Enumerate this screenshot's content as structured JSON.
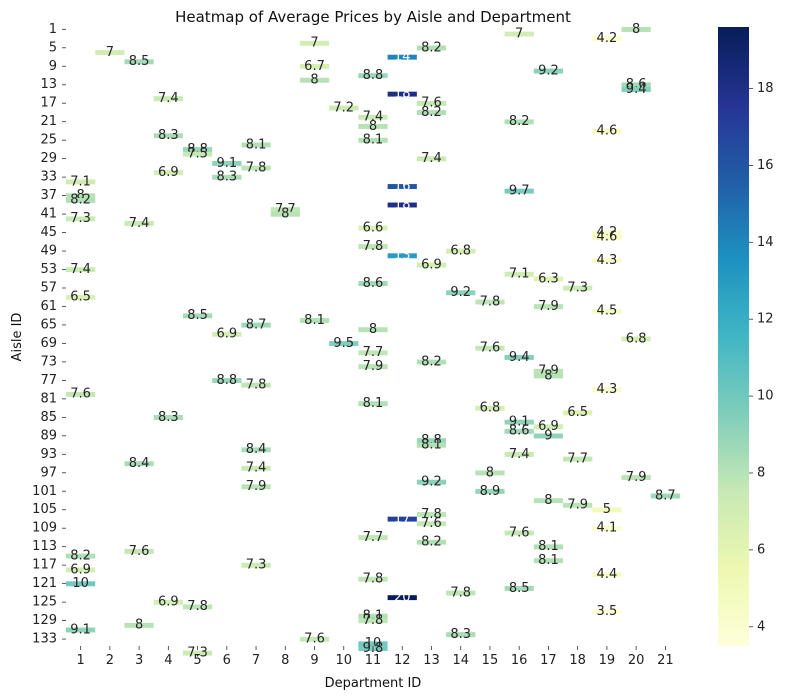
{
  "chart_data": {
    "type": "heatmap",
    "title": "Heatmap of Average Prices by Aisle and Department",
    "xlabel": "Department ID",
    "ylabel": "Aisle ID",
    "x_categories": [
      1,
      2,
      3,
      4,
      5,
      6,
      7,
      8,
      9,
      10,
      11,
      12,
      13,
      14,
      15,
      16,
      17,
      18,
      19,
      20,
      21
    ],
    "y_tick_labels": [
      1,
      5,
      9,
      13,
      17,
      21,
      25,
      29,
      33,
      37,
      41,
      45,
      49,
      53,
      57,
      61,
      65,
      69,
      73,
      77,
      81,
      85,
      89,
      93,
      97,
      101,
      105,
      109,
      113,
      117,
      121,
      125,
      129,
      133
    ],
    "y_range": [
      1,
      134
    ],
    "colorscale": "YlGnBu",
    "color_range": [
      3.5,
      19.6
    ],
    "colorbar_ticks": [
      4,
      6,
      8,
      10,
      12,
      14,
      16,
      18
    ],
    "cells": [
      {
        "aisle": 1,
        "dept": 20,
        "value": 8.0,
        "label": "8"
      },
      {
        "aisle": 2,
        "dept": 16,
        "value": 7.0,
        "label": "7"
      },
      {
        "aisle": 3,
        "dept": 19,
        "value": 4.2,
        "label": "4.2"
      },
      {
        "aisle": 4,
        "dept": 9,
        "value": 7.0,
        "label": "7"
      },
      {
        "aisle": 5,
        "dept": 13,
        "value": 8.2,
        "label": "8.2"
      },
      {
        "aisle": 6,
        "dept": 2,
        "value": 7.0,
        "label": "7"
      },
      {
        "aisle": 7,
        "dept": 12,
        "value": 14.0,
        "label": "14"
      },
      {
        "aisle": 8,
        "dept": 3,
        "value": 8.5,
        "label": "8.5"
      },
      {
        "aisle": 9,
        "dept": 9,
        "value": 6.7,
        "label": "6.7"
      },
      {
        "aisle": 10,
        "dept": 17,
        "value": 9.2,
        "label": "9.2"
      },
      {
        "aisle": 11,
        "dept": 11,
        "value": 8.8,
        "label": "8.8"
      },
      {
        "aisle": 12,
        "dept": 9,
        "value": 8.0,
        "label": "8"
      },
      {
        "aisle": 13,
        "dept": 20,
        "value": 8.6,
        "label": "8.6"
      },
      {
        "aisle": 14,
        "dept": 20,
        "value": 9.4,
        "label": "9.4"
      },
      {
        "aisle": 15,
        "dept": 12,
        "value": 18.0,
        "label": "18"
      },
      {
        "aisle": 16,
        "dept": 4,
        "value": 7.4,
        "label": "7.4"
      },
      {
        "aisle": 17,
        "dept": 13,
        "value": 7.6,
        "label": "7.6"
      },
      {
        "aisle": 18,
        "dept": 10,
        "value": 7.2,
        "label": "7.2"
      },
      {
        "aisle": 19,
        "dept": 13,
        "value": 8.2,
        "label": "8.2"
      },
      {
        "aisle": 20,
        "dept": 11,
        "value": 7.4,
        "label": "7.4"
      },
      {
        "aisle": 21,
        "dept": 16,
        "value": 8.2,
        "label": "8.2"
      },
      {
        "aisle": 22,
        "dept": 11,
        "value": 8.0,
        "label": "8"
      },
      {
        "aisle": 23,
        "dept": 19,
        "value": 4.6,
        "label": "4.6"
      },
      {
        "aisle": 24,
        "dept": 4,
        "value": 8.3,
        "label": "8.3"
      },
      {
        "aisle": 25,
        "dept": 11,
        "value": 8.1,
        "label": "8.1"
      },
      {
        "aisle": 26,
        "dept": 7,
        "value": 8.1,
        "label": "8.1"
      },
      {
        "aisle": 27,
        "dept": 5,
        "value": 8.8,
        "label": "8.8"
      },
      {
        "aisle": 28,
        "dept": 5,
        "value": 7.5,
        "label": "7.5"
      },
      {
        "aisle": 29,
        "dept": 13,
        "value": 7.4,
        "label": "7.4"
      },
      {
        "aisle": 30,
        "dept": 6,
        "value": 9.1,
        "label": "9.1"
      },
      {
        "aisle": 31,
        "dept": 7,
        "value": 7.8,
        "label": "7.8"
      },
      {
        "aisle": 32,
        "dept": 4,
        "value": 6.9,
        "label": "6.9"
      },
      {
        "aisle": 33,
        "dept": 6,
        "value": 8.3,
        "label": "8.3"
      },
      {
        "aisle": 34,
        "dept": 1,
        "value": 7.1,
        "label": "7.1"
      },
      {
        "aisle": 35,
        "dept": 12,
        "value": 16.0,
        "label": "16"
      },
      {
        "aisle": 36,
        "dept": 16,
        "value": 9.7,
        "label": "9.7"
      },
      {
        "aisle": 37,
        "dept": 1,
        "value": 8.0,
        "label": "8"
      },
      {
        "aisle": 38,
        "dept": 1,
        "value": 8.2,
        "label": "8.2"
      },
      {
        "aisle": 39,
        "dept": 12,
        "value": 18.0,
        "label": "18"
      },
      {
        "aisle": 40,
        "dept": 8,
        "value": 7.7,
        "label": "7.7"
      },
      {
        "aisle": 41,
        "dept": 8,
        "value": 8.0,
        "label": "8"
      },
      {
        "aisle": 42,
        "dept": 1,
        "value": 7.3,
        "label": "7.3"
      },
      {
        "aisle": 43,
        "dept": 3,
        "value": 7.4,
        "label": "7.4"
      },
      {
        "aisle": 44,
        "dept": 11,
        "value": 6.6,
        "label": "6.6"
      },
      {
        "aisle": 45,
        "dept": 19,
        "value": 4.2,
        "label": "4.2"
      },
      {
        "aisle": 46,
        "dept": 19,
        "value": 4.6,
        "label": "4.6"
      },
      {
        "aisle": 48,
        "dept": 11,
        "value": 7.8,
        "label": "7.8"
      },
      {
        "aisle": 49,
        "dept": 14,
        "value": 6.8,
        "label": "6.8"
      },
      {
        "aisle": 50,
        "dept": 12,
        "value": 13.0,
        "label": "13"
      },
      {
        "aisle": 51,
        "dept": 19,
        "value": 4.3,
        "label": "4.3"
      },
      {
        "aisle": 52,
        "dept": 13,
        "value": 6.9,
        "label": "6.9"
      },
      {
        "aisle": 53,
        "dept": 1,
        "value": 7.4,
        "label": "7.4"
      },
      {
        "aisle": 54,
        "dept": 16,
        "value": 7.1,
        "label": "7.1"
      },
      {
        "aisle": 55,
        "dept": 17,
        "value": 6.3,
        "label": "6.3"
      },
      {
        "aisle": 56,
        "dept": 11,
        "value": 8.6,
        "label": "8.6"
      },
      {
        "aisle": 57,
        "dept": 18,
        "value": 7.3,
        "label": "7.3"
      },
      {
        "aisle": 58,
        "dept": 14,
        "value": 9.2,
        "label": "9.2"
      },
      {
        "aisle": 59,
        "dept": 1,
        "value": 6.5,
        "label": "6.5"
      },
      {
        "aisle": 60,
        "dept": 15,
        "value": 7.8,
        "label": "7.8"
      },
      {
        "aisle": 61,
        "dept": 17,
        "value": 7.9,
        "label": "7.9"
      },
      {
        "aisle": 62,
        "dept": 19,
        "value": 4.5,
        "label": "4.5"
      },
      {
        "aisle": 63,
        "dept": 5,
        "value": 8.5,
        "label": "8.5"
      },
      {
        "aisle": 64,
        "dept": 9,
        "value": 8.1,
        "label": "8.1"
      },
      {
        "aisle": 65,
        "dept": 7,
        "value": 8.7,
        "label": "8.7"
      },
      {
        "aisle": 66,
        "dept": 11,
        "value": 8.0,
        "label": "8"
      },
      {
        "aisle": 67,
        "dept": 6,
        "value": 6.9,
        "label": "6.9"
      },
      {
        "aisle": 68,
        "dept": 20,
        "value": 6.8,
        "label": "6.8"
      },
      {
        "aisle": 69,
        "dept": 10,
        "value": 9.5,
        "label": "9.5"
      },
      {
        "aisle": 70,
        "dept": 15,
        "value": 7.6,
        "label": "7.6"
      },
      {
        "aisle": 71,
        "dept": 11,
        "value": 7.7,
        "label": "7.7"
      },
      {
        "aisle": 72,
        "dept": 16,
        "value": 9.4,
        "label": "9.4"
      },
      {
        "aisle": 73,
        "dept": 13,
        "value": 8.2,
        "label": "8.2"
      },
      {
        "aisle": 74,
        "dept": 11,
        "value": 7.9,
        "label": "7.9"
      },
      {
        "aisle": 75,
        "dept": 17,
        "value": 7.9,
        "label": "7.9"
      },
      {
        "aisle": 76,
        "dept": 17,
        "value": 8.0,
        "label": "8"
      },
      {
        "aisle": 77,
        "dept": 6,
        "value": 8.8,
        "label": "8.8"
      },
      {
        "aisle": 78,
        "dept": 7,
        "value": 7.8,
        "label": "7.8"
      },
      {
        "aisle": 79,
        "dept": 19,
        "value": 4.3,
        "label": "4.3"
      },
      {
        "aisle": 80,
        "dept": 1,
        "value": 7.6,
        "label": "7.6"
      },
      {
        "aisle": 82,
        "dept": 11,
        "value": 8.1,
        "label": "8.1"
      },
      {
        "aisle": 83,
        "dept": 15,
        "value": 6.8,
        "label": "6.8"
      },
      {
        "aisle": 84,
        "dept": 18,
        "value": 6.5,
        "label": "6.5"
      },
      {
        "aisle": 85,
        "dept": 4,
        "value": 8.3,
        "label": "8.3"
      },
      {
        "aisle": 86,
        "dept": 16,
        "value": 9.1,
        "label": "9.1"
      },
      {
        "aisle": 87,
        "dept": 17,
        "value": 6.9,
        "label": "6.9"
      },
      {
        "aisle": 88,
        "dept": 16,
        "value": 8.6,
        "label": "8.6"
      },
      {
        "aisle": 89,
        "dept": 17,
        "value": 9.0,
        "label": "9"
      },
      {
        "aisle": 90,
        "dept": 13,
        "value": 8.8,
        "label": "8.8"
      },
      {
        "aisle": 91,
        "dept": 13,
        "value": 8.1,
        "label": "8.1"
      },
      {
        "aisle": 92,
        "dept": 7,
        "value": 8.4,
        "label": "8.4"
      },
      {
        "aisle": 93,
        "dept": 16,
        "value": 7.4,
        "label": "7.4"
      },
      {
        "aisle": 94,
        "dept": 18,
        "value": 7.7,
        "label": "7.7"
      },
      {
        "aisle": 95,
        "dept": 3,
        "value": 8.4,
        "label": "8.4"
      },
      {
        "aisle": 96,
        "dept": 7,
        "value": 7.4,
        "label": "7.4"
      },
      {
        "aisle": 97,
        "dept": 15,
        "value": 8.0,
        "label": "8"
      },
      {
        "aisle": 98,
        "dept": 20,
        "value": 7.9,
        "label": "7.9"
      },
      {
        "aisle": 99,
        "dept": 13,
        "value": 9.2,
        "label": "9.2"
      },
      {
        "aisle": 100,
        "dept": 7,
        "value": 7.9,
        "label": "7.9"
      },
      {
        "aisle": 101,
        "dept": 15,
        "value": 8.9,
        "label": "8.9"
      },
      {
        "aisle": 102,
        "dept": 21,
        "value": 8.7,
        "label": "8.7"
      },
      {
        "aisle": 103,
        "dept": 17,
        "value": 8.0,
        "label": "8"
      },
      {
        "aisle": 104,
        "dept": 18,
        "value": 7.9,
        "label": "7.9"
      },
      {
        "aisle": 105,
        "dept": 19,
        "value": 5.0,
        "label": "5"
      },
      {
        "aisle": 106,
        "dept": 13,
        "value": 7.8,
        "label": "7.8"
      },
      {
        "aisle": 107,
        "dept": 12,
        "value": 17.0,
        "label": "17"
      },
      {
        "aisle": 108,
        "dept": 13,
        "value": 7.6,
        "label": "7.6"
      },
      {
        "aisle": 109,
        "dept": 19,
        "value": 4.1,
        "label": "4.1"
      },
      {
        "aisle": 110,
        "dept": 16,
        "value": 7.6,
        "label": "7.6"
      },
      {
        "aisle": 111,
        "dept": 11,
        "value": 7.7,
        "label": "7.7"
      },
      {
        "aisle": 112,
        "dept": 13,
        "value": 8.2,
        "label": "8.2"
      },
      {
        "aisle": 113,
        "dept": 17,
        "value": 8.1,
        "label": "8.1"
      },
      {
        "aisle": 114,
        "dept": 3,
        "value": 7.6,
        "label": "7.6"
      },
      {
        "aisle": 115,
        "dept": 1,
        "value": 8.2,
        "label": "8.2"
      },
      {
        "aisle": 116,
        "dept": 17,
        "value": 8.1,
        "label": "8.1"
      },
      {
        "aisle": 117,
        "dept": 7,
        "value": 7.3,
        "label": "7.3"
      },
      {
        "aisle": 118,
        "dept": 1,
        "value": 6.9,
        "label": "6.9"
      },
      {
        "aisle": 119,
        "dept": 19,
        "value": 4.4,
        "label": "4.4"
      },
      {
        "aisle": 120,
        "dept": 11,
        "value": 7.8,
        "label": "7.8"
      },
      {
        "aisle": 121,
        "dept": 1,
        "value": 10.0,
        "label": "10"
      },
      {
        "aisle": 122,
        "dept": 16,
        "value": 8.5,
        "label": "8.5"
      },
      {
        "aisle": 123,
        "dept": 14,
        "value": 7.8,
        "label": "7.8"
      },
      {
        "aisle": 124,
        "dept": 12,
        "value": 20.0,
        "label": "20"
      },
      {
        "aisle": 125,
        "dept": 4,
        "value": 6.9,
        "label": "6.9"
      },
      {
        "aisle": 126,
        "dept": 5,
        "value": 7.8,
        "label": "7.8"
      },
      {
        "aisle": 127,
        "dept": 19,
        "value": 3.5,
        "label": "3.5"
      },
      {
        "aisle": 128,
        "dept": 11,
        "value": 8.1,
        "label": "8.1"
      },
      {
        "aisle": 129,
        "dept": 11,
        "value": 7.8,
        "label": "7.8"
      },
      {
        "aisle": 130,
        "dept": 3,
        "value": 8.0,
        "label": "8"
      },
      {
        "aisle": 131,
        "dept": 1,
        "value": 9.1,
        "label": "9.1"
      },
      {
        "aisle": 132,
        "dept": 14,
        "value": 8.3,
        "label": "8.3"
      },
      {
        "aisle": 133,
        "dept": 9,
        "value": 7.6,
        "label": "7.6"
      },
      {
        "aisle": 134,
        "dept": 11,
        "value": 10.0,
        "label": "10"
      },
      {
        "aisle": 135,
        "dept": 11,
        "value": 9.8,
        "label": "9.8"
      },
      {
        "aisle": 136,
        "dept": 5,
        "value": 7.3,
        "label": "7.3"
      }
    ]
  }
}
